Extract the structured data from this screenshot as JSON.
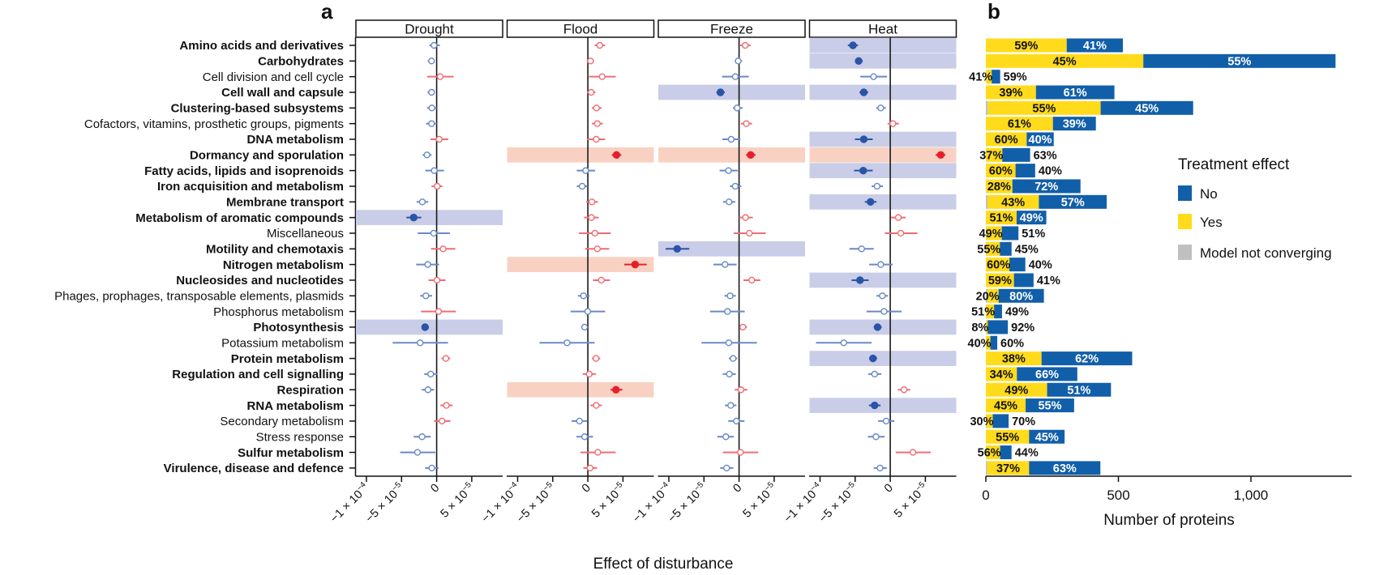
{
  "figure": {
    "panel_a_label": "a",
    "panel_b_label": "b"
  },
  "colors": {
    "negative_significant": "#2a54a7",
    "negative_not_significant": "#6a89c6",
    "positive_significant": "#e6202b",
    "positive_not_significant": "#ee6d73",
    "band_negative": "#c9cde7",
    "band_positive": "#f9d1c3",
    "yes": "#ffdb1b",
    "no": "#125fa9",
    "not_converging": "#c0c0c0"
  },
  "chart_data": [
    {
      "type": "scatter",
      "subtype": "forest plot (point estimate with confidence interval), faceted by disturbance",
      "title": "",
      "xlabel": "Effect of disturbance",
      "ylabel": "",
      "grid": false,
      "xlim": [
        -0.000115,
        9.4e-05
      ],
      "xticks": [
        -0.0001,
        -5e-05,
        0,
        5e-05
      ],
      "xtick_labels": [
        {
          "base": "−1 × 10",
          "exp": "−4"
        },
        {
          "base": "−5 × 10",
          "exp": "−5"
        },
        {
          "base": "0",
          "exp": ""
        },
        {
          "base": "5 × 10",
          "exp": "−5"
        }
      ],
      "categories": [
        "Amino acids and derivatives",
        "Carbohydrates",
        "Cell division and cell cycle",
        "Cell wall and capsule",
        "Clustering-based subsystems",
        "Cofactors, vitamins, prosthetic groups, pigments",
        "DNA metabolism",
        "Dormancy and sporulation",
        "Fatty acids, lipids and isoprenoids",
        "Iron acquisition and metabolism",
        "Membrane transport",
        "Metabolism of aromatic compounds",
        "Miscellaneous",
        "Motility and chemotaxis",
        "Nitrogen metabolism",
        "Nucleosides and nucleotides",
        "Phages, prophages, transposable elements, plasmids",
        "Phosphorus metabolism",
        "Photosynthesis",
        "Potassium metabolism",
        "Protein metabolism",
        "Regulation and cell signalling",
        "Respiration",
        "RNA metabolism",
        "Secondary metabolism",
        "Stress response",
        "Sulfur metabolism",
        "Virulence, disease and defence"
      ],
      "category_bold": [
        true,
        true,
        false,
        true,
        true,
        false,
        true,
        true,
        true,
        true,
        true,
        true,
        false,
        true,
        true,
        true,
        false,
        false,
        true,
        false,
        true,
        true,
        true,
        true,
        false,
        false,
        true,
        true
      ],
      "facets": [
        {
          "name": "Drought",
          "estimate": [
            -3.8e-06,
            -7.3e-06,
            5e-06,
            -7.3e-06,
            -6.9e-06,
            -7.3e-06,
            3.5e-06,
            -1.38e-05,
            -3.5e-06,
            8e-07,
            -2.04e-05,
            -3.27e-05,
            -4.2e-06,
            9.2e-06,
            -1.27e-05,
            4e-07,
            -1.54e-05,
            2.7e-06,
            -1.65e-05,
            -2.35e-05,
            1.31e-05,
            -8.5e-06,
            -1.23e-05,
            1.38e-05,
            7.7e-06,
            -2.08e-05,
            -2.73e-05,
            -6.9e-06
          ],
          "ci_low": [
            -1.04e-05,
            -1.27e-05,
            -1.35e-05,
            -1.31e-05,
            -1.38e-05,
            -1.5e-05,
            -8.8e-06,
            -2e-05,
            -1.62e-05,
            -7.3e-06,
            -2.85e-05,
            -4.31e-05,
            -2.69e-05,
            -8.1e-06,
            -2.92e-05,
            -1.15e-05,
            -2.35e-05,
            -2.23e-05,
            -2.15e-05,
            -6.27e-05,
            6.9e-06,
            -1.77e-05,
            -2.12e-05,
            5.4e-06,
            -3.8e-06,
            -3.27e-05,
            -5.19e-05,
            -1.65e-05
          ],
          "ci_high": [
            4.6e-06,
            -2.7e-06,
            2.42e-05,
            -2.7e-06,
            0,
            0,
            1.65e-05,
            -7.3e-06,
            1.04e-05,
            8.1e-06,
            -1.19e-05,
            -2.19e-05,
            1.88e-05,
            2.65e-05,
            3.5e-06,
            1.27e-05,
            -6.5e-06,
            2.73e-05,
            -1.12e-05,
            1.62e-05,
            1.92e-05,
            8e-07,
            -3.5e-06,
            2.27e-05,
            1.96e-05,
            -8.5e-06,
            -1.9e-06,
            2.7e-06
          ],
          "significant_rows": [
            11,
            18
          ]
        },
        {
          "name": "Flood",
          "estimate": [
            1.69e-05,
            3.8e-06,
            2.04e-05,
            4.6e-06,
            1.23e-05,
            1.35e-05,
            1.19e-05,
            4.08e-05,
            -3.1e-06,
            -8.1e-06,
            5.8e-06,
            5e-06,
            1e-05,
            1.35e-05,
            6.73e-05,
            1.92e-05,
            -6.2e-06,
            -2e-07,
            -4.6e-06,
            -2.96e-05,
            1.15e-05,
            1.9e-06,
            4e-05,
            1.19e-05,
            -1.19e-05,
            -4.6e-06,
            1.42e-05,
            3.1e-06
          ],
          "ci_low": [
            9.6e-06,
            -1.5e-06,
            1.5e-06,
            -8e-07,
            5.8e-06,
            5.8e-06,
            -8e-07,
            3.42e-05,
            -1.58e-05,
            -1.58e-05,
            -2.3e-06,
            -5.4e-06,
            -1.27e-05,
            -3.8e-06,
            5.19e-05,
            7.3e-06,
            -1.42e-05,
            -2.46e-05,
            -8.8e-06,
            -6.88e-05,
            5.8e-06,
            -7.3e-06,
            3.23e-05,
            3.8e-06,
            -2.31e-05,
            -1.62e-05,
            -1.04e-05,
            -6.5e-06
          ],
          "ci_high": [
            2.46e-05,
            8.8e-06,
            3.96e-05,
            1.08e-05,
            1.96e-05,
            2.12e-05,
            2.46e-05,
            4.77e-05,
            1.04e-05,
            -4e-07,
            1.42e-05,
            1.54e-05,
            3.27e-05,
            3.04e-05,
            8.38e-05,
            3.15e-05,
            2.7e-06,
            2.46e-05,
            0,
            9.6e-06,
            1.77e-05,
            1.15e-05,
            4.92e-05,
            2e-05,
            -4e-07,
            7.3e-06,
            3.96e-05,
            1.31e-05
          ],
          "significant_rows": [
            7,
            14,
            22
          ]
        },
        {
          "name": "Freeze",
          "estimate": [
            8.8e-06,
            -1.2e-06,
            -5.4e-06,
            -2.65e-05,
            -2.7e-06,
            1.04e-05,
            -1.12e-05,
            1.65e-05,
            -1.5e-05,
            -5.4e-06,
            -1.42e-05,
            9.2e-06,
            1.46e-05,
            -8.81e-05,
            -2e-05,
            1.81e-05,
            -1.27e-05,
            -1.65e-05,
            5.4e-06,
            -1.46e-05,
            -8.5e-06,
            -1.38e-05,
            2.7e-06,
            -1.19e-05,
            -3.8e-06,
            -1.88e-05,
            1.9e-06,
            -1.77e-05
          ],
          "ci_low": [
            1.5e-06,
            -6.2e-06,
            -2.42e-05,
            -3.23e-05,
            -8.8e-06,
            2.7e-06,
            -2.38e-05,
            1e-05,
            -2.77e-05,
            -1.31e-05,
            -2.27e-05,
            0,
            -7.7e-06,
            -0.0001046,
            -3.65e-05,
            6.2e-06,
            -2.08e-05,
            -4.12e-05,
            4e-07,
            -5.35e-05,
            -1.46e-05,
            -2.31e-05,
            -6.2e-06,
            -2e-05,
            -1.54e-05,
            -3.08e-05,
            -2.31e-05,
            -2.69e-05
          ],
          "ci_high": [
            1.65e-05,
            4.2e-06,
            1.38e-05,
            -2.04e-05,
            5e-06,
            1.85e-05,
            1.9e-06,
            2.35e-05,
            -1.9e-06,
            3.1e-06,
            -5.4e-06,
            1.96e-05,
            3.81e-05,
            -7.08e-05,
            -3.5e-06,
            3.04e-05,
            -4.6e-06,
            8.1e-06,
            1.12e-05,
            2.54e-05,
            -2.7e-06,
            -4.6e-06,
            1.19e-05,
            -3.8e-06,
            7.7e-06,
            -7.3e-06,
            2.73e-05,
            -8.1e-06
          ],
          "significant_rows": [
            3,
            7,
            13
          ]
        },
        {
          "name": "Heat",
          "estimate": [
            -5.31e-05,
            -4.5e-05,
            -2.38e-05,
            -3.77e-05,
            -1.35e-05,
            3.8e-06,
            -3.77e-05,
            7.19e-05,
            -3.85e-05,
            -1.88e-05,
            -2.81e-05,
            1.15e-05,
            1.5e-05,
            -4.08e-05,
            -1.35e-05,
            -4.31e-05,
            -1.12e-05,
            -8.8e-06,
            -1.81e-05,
            -6.62e-05,
            -2.46e-05,
            -2.23e-05,
            1.96e-05,
            -2.23e-05,
            -5.8e-06,
            -2.04e-05,
            3.23e-05,
            -1.46e-05
          ],
          "ci_low": [
            -6.04e-05,
            -5e-05,
            -4.27e-05,
            -4.38e-05,
            -2e-05,
            -3.8e-06,
            -5.04e-05,
            6.46e-05,
            -5.15e-05,
            -2.65e-05,
            -3.62e-05,
            1.2e-06,
            -7.7e-06,
            -5.81e-05,
            -3e-05,
            -5.5e-05,
            -1.96e-05,
            -3.38e-05,
            -2.35e-05,
            -0.0001058,
            -3e-05,
            -3.15e-05,
            1.08e-05,
            -3.04e-05,
            -1.73e-05,
            -3.19e-05,
            7.7e-06,
            -2.35e-05
          ],
          "ci_high": [
            -4.58e-05,
            -3.92e-05,
            -4.6e-06,
            -3.15e-05,
            -6.2e-06,
            1.23e-05,
            -2.5e-05,
            7.85e-05,
            -2.5e-05,
            -1.04e-05,
            -1.96e-05,
            2.19e-05,
            3.85e-05,
            -2.35e-05,
            3.5e-06,
            -3.08e-05,
            -3.1e-06,
            1.62e-05,
            -1.23e-05,
            -2.65e-05,
            -1.88e-05,
            -1.27e-05,
            2.85e-05,
            -1.38e-05,
            5.8e-06,
            -8.1e-06,
            5.77e-05,
            -5e-06
          ],
          "significant_rows": [
            0,
            1,
            3,
            6,
            7,
            8,
            10,
            15,
            18,
            20,
            23
          ]
        }
      ]
    },
    {
      "type": "bar",
      "orientation": "horizontal",
      "stacked": true,
      "title": "",
      "xlabel": "Number of proteins",
      "ylabel": "",
      "grid": false,
      "xlim": [
        0,
        1380
      ],
      "xticks": [
        0,
        500,
        1000
      ],
      "xtick_labels": [
        "0",
        "500",
        "1,000"
      ],
      "categories": [
        "Amino acids and derivatives",
        "Carbohydrates",
        "Cell division and cell cycle",
        "Cell wall and capsule",
        "Clustering-based subsystems",
        "Cofactors, vitamins, prosthetic groups, pigments",
        "DNA metabolism",
        "Dormancy and sporulation",
        "Fatty acids, lipids and isoprenoids",
        "Iron acquisition and metabolism",
        "Membrane transport",
        "Metabolism of aromatic compounds",
        "Miscellaneous",
        "Motility and chemotaxis",
        "Nitrogen metabolism",
        "Nucleosides and nucleotides",
        "Phages, prophages, transposable elements, plasmids",
        "Phosphorus metabolism",
        "Photosynthesis",
        "Potassium metabolism",
        "Protein metabolism",
        "Regulation and cell signalling",
        "Respiration",
        "RNA metabolism",
        "Secondary metabolism",
        "Stress response",
        "Sulfur metabolism",
        "Virulence, disease and defence"
      ],
      "series": [
        {
          "name": "Model not converging",
          "values": [
            0,
            0,
            0,
            0,
            7,
            0,
            0,
            0,
            0,
            0,
            6,
            0,
            0,
            0,
            0,
            0,
            5,
            0,
            0,
            0,
            0,
            0,
            0,
            0,
            0,
            0,
            0,
            5
          ]
        },
        {
          "name": "Yes",
          "values": [
            305,
            594,
            22,
            189,
            426,
            253,
            154,
            62,
            112,
            100,
            194,
            116,
            60,
            53,
            89,
            106,
            43,
            31,
            7,
            17,
            210,
            117,
            231,
            150,
            26,
            163,
            54,
            158
          ]
        },
        {
          "name": "No",
          "values": [
            212,
            725,
            32,
            296,
            349,
            162,
            102,
            105,
            74,
            257,
            256,
            112,
            63,
            44,
            60,
            74,
            171,
            30,
            76,
            26,
            342,
            228,
            241,
            183,
            60,
            134,
            43,
            269
          ]
        }
      ],
      "yes_pct_labels": [
        "59%",
        "45%",
        "41%",
        "39%",
        "55%",
        "61%",
        "60%",
        "37%",
        "60%",
        "28%",
        "43%",
        "51%",
        "49%",
        "55%",
        "60%",
        "59%",
        "20%",
        "51%",
        "8%",
        "40%",
        "38%",
        "34%",
        "49%",
        "45%",
        "30%",
        "55%",
        "56%",
        "37%"
      ],
      "no_pct_labels": [
        "41%",
        "55%",
        "59%",
        "61%",
        "45%",
        "39%",
        "40%",
        "63%",
        "40%",
        "72%",
        "57%",
        "49%",
        "51%",
        "45%",
        "40%",
        "41%",
        "80%",
        "49%",
        "92%",
        "60%",
        "62%",
        "66%",
        "51%",
        "55%",
        "70%",
        "45%",
        "44%",
        "63%"
      ],
      "yes_label_placement": [
        "inside",
        "inside",
        "outside",
        "inside",
        "inside",
        "inside",
        "inside",
        "outside",
        "inside",
        "inside",
        "inside",
        "inside",
        "outside",
        "outside",
        "outside",
        "inside",
        "outside",
        "outside",
        "outside",
        "outside",
        "inside",
        "inside",
        "inside",
        "inside",
        "outside",
        "inside",
        "outside",
        "inside"
      ],
      "no_label_placement": [
        "inside",
        "inside",
        "outside",
        "inside",
        "inside",
        "inside",
        "inside",
        "outside",
        "outside",
        "inside",
        "inside",
        "inside",
        "outside",
        "outside",
        "outside",
        "outside",
        "inside",
        "outside",
        "outside",
        "outside",
        "inside",
        "inside",
        "inside",
        "inside",
        "outside",
        "inside",
        "outside",
        "inside"
      ],
      "legend": {
        "title": "Treatment effect",
        "position": "right",
        "entries": [
          {
            "label": "No",
            "color": "#125fa9"
          },
          {
            "label": "Yes",
            "color": "#ffdb1b"
          },
          {
            "label": "Model not converging",
            "color": "#c0c0c0"
          }
        ]
      }
    }
  ]
}
